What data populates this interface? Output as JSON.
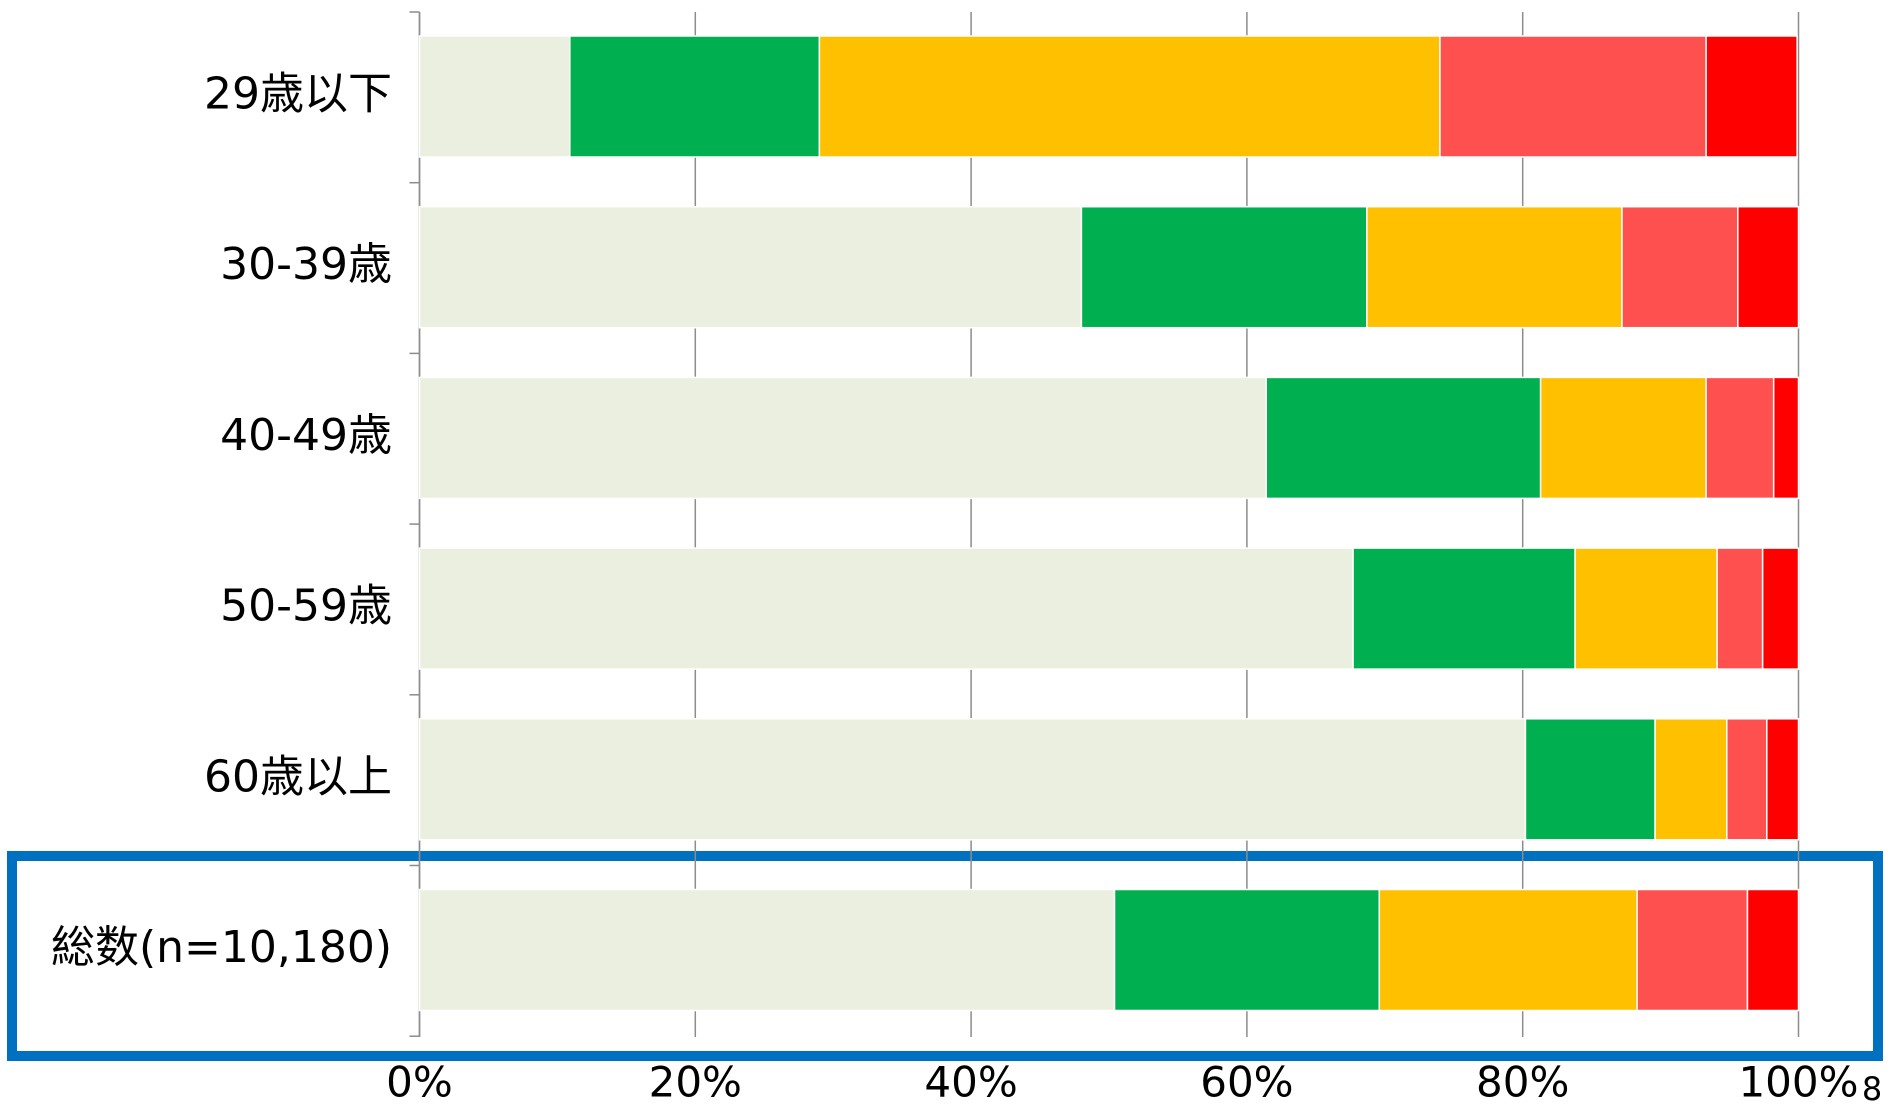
{
  "chart_data": {
    "type": "stacked-barh",
    "categories": [
      "29歳以下",
      "30-39歳",
      "40-49歳",
      "50-59歳",
      "60歳以上",
      "総数(n=10,180)"
    ],
    "series": [
      {
        "color": "#ebefdf",
        "values": [
          10.9,
          48.0,
          61.4,
          67.7,
          80.2,
          50.4
        ]
      },
      {
        "color": "#00b050",
        "values": [
          18.1,
          20.7,
          19.9,
          16.1,
          9.4,
          19.2
        ]
      },
      {
        "color": "#ffc000",
        "values": [
          45.0,
          18.5,
          12.0,
          10.3,
          5.2,
          18.7
        ]
      },
      {
        "color": "#ff5050",
        "values": [
          19.3,
          8.4,
          4.9,
          3.3,
          2.9,
          8.0
        ]
      },
      {
        "color": "#ff0000",
        "values": [
          6.6,
          4.4,
          1.8,
          2.6,
          2.3,
          3.7
        ]
      }
    ],
    "xlim": [
      0,
      100
    ],
    "xticks": [
      {
        "value": 0,
        "label": "0%"
      },
      {
        "value": 20,
        "label": "20%"
      },
      {
        "value": 40,
        "label": "40%"
      },
      {
        "value": 60,
        "label": "60%"
      },
      {
        "value": 80,
        "label": "80%"
      },
      {
        "value": 100,
        "label": "100%"
      }
    ],
    "grid": true
  },
  "page_number": "8"
}
